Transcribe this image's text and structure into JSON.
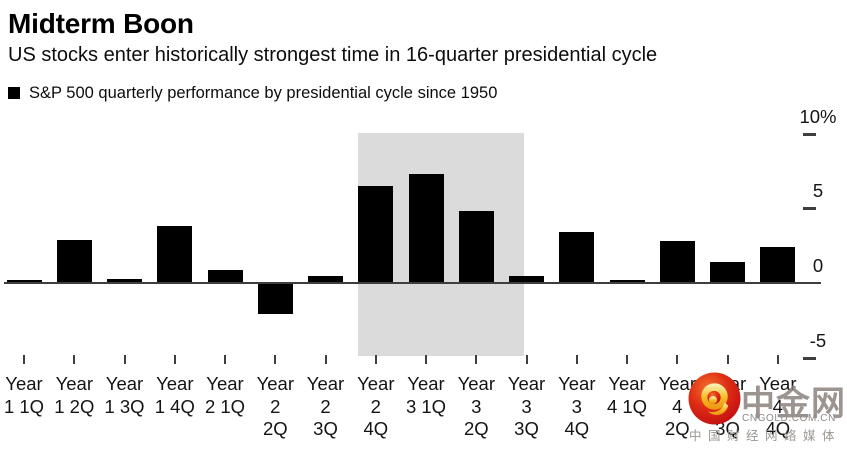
{
  "chart_data": {
    "type": "bar",
    "title": "Midterm Boon",
    "subtitle": "US stocks enter historically strongest time in 16-quarter presidential cycle",
    "legend": [
      {
        "label": "S&P 500 quarterly performance by presidential cycle since 1950",
        "color": "#000000"
      }
    ],
    "unit": "%",
    "categories": [
      "Year 1 1Q",
      "Year 1 2Q",
      "Year 1 3Q",
      "Year 1 4Q",
      "Year 2 1Q",
      "Year 2 2Q",
      "Year 2 3Q",
      "Year 2 4Q",
      "Year 3 1Q",
      "Year 3 2Q",
      "Year 3 3Q",
      "Year 3 4Q",
      "Year 4 1Q",
      "Year 4 2Q",
      "Year 4 3Q",
      "Year 4 4Q"
    ],
    "category_lines": [
      [
        "Year",
        "1 1Q"
      ],
      [
        "Year",
        "1 2Q"
      ],
      [
        "Year",
        "1 3Q"
      ],
      [
        "Year",
        "1 4Q"
      ],
      [
        "Year",
        "2 1Q"
      ],
      [
        "Year",
        "2",
        "2Q"
      ],
      [
        "Year",
        "2",
        "3Q"
      ],
      [
        "Year",
        "2",
        "4Q"
      ],
      [
        "Year",
        "3 1Q"
      ],
      [
        "Year",
        "3",
        "2Q"
      ],
      [
        "Year",
        "3",
        "3Q"
      ],
      [
        "Year",
        "3",
        "4Q"
      ],
      [
        "Year",
        "4 1Q"
      ],
      [
        "Year",
        "4",
        "2Q"
      ],
      [
        "Year",
        "4",
        "3Q"
      ],
      [
        "Year",
        "4",
        "4Q"
      ]
    ],
    "values": [
      0.2,
      2.9,
      0.3,
      3.8,
      0.9,
      -2.1,
      0.5,
      6.5,
      7.3,
      4.8,
      0.5,
      3.4,
      0.2,
      2.8,
      1.4,
      2.4
    ],
    "bar_color": "#000000",
    "grid": false,
    "y_axis": {
      "side": "right",
      "min": -5,
      "max": 10,
      "ticks": [
        {
          "label": "10%",
          "value": 10
        },
        {
          "label": "5",
          "value": 5
        },
        {
          "label": "0",
          "value": 0
        },
        {
          "label": "-5",
          "value": -5
        }
      ]
    },
    "highlight_band": {
      "categories": [
        "Year 2 4Q",
        "Year 3 1Q",
        "Year 3 2Q"
      ],
      "color": "#dbdbdb"
    }
  },
  "watermark": {
    "site_name": "中金网",
    "domain": "CNGOLD.COM.CN",
    "tagline": "中国财经网络媒体",
    "logo_colors": {
      "circle_red": "#d2201a",
      "swirl_gold": "#f6bb20"
    }
  }
}
